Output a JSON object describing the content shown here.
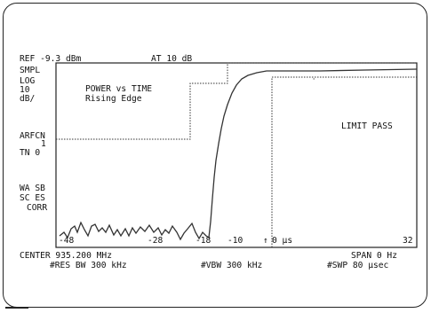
{
  "header": {
    "ref_level": "REF -9.3 dBm",
    "attenuation": "AT 10 dB"
  },
  "left_annotations": {
    "detector": "SMPL",
    "scale_1": "LOG",
    "scale_2": "10",
    "scale_3": "dB/",
    "arfcn_label": "ARFCN",
    "arfcn_value": "1",
    "tn": "TN 0",
    "wa_sb": "WA SB",
    "sc_es": "SC ES",
    "corr": "CORR"
  },
  "measurement": {
    "title_1": "POWER vs TIME",
    "title_2": "Rising Edge",
    "limit_status": "LIMIT PASS"
  },
  "x_axis": {
    "ticks": [
      "-48",
      "-28",
      "-18",
      "-10",
      "0 µs",
      "32"
    ],
    "marker_symbol": "↑"
  },
  "footer": {
    "center": "CENTER 935.200 MHz",
    "span": "SPAN 0 Hz",
    "rbw": "#RES BW 300 kHz",
    "vbw": "#VBW 300 kHz",
    "sweep": "#SWP 80 µsec"
  },
  "colors": {
    "trace": "#333333",
    "frame": "#222222",
    "background": "#ffffff"
  }
}
